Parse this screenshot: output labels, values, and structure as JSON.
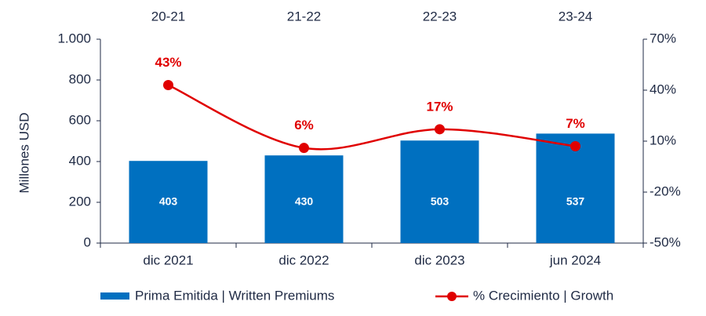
{
  "chart_data": {
    "type": "bar",
    "categories": [
      "dic 2021",
      "dic 2022",
      "dic 2023",
      "jun 2024"
    ],
    "top_labels": [
      "20-21",
      "21-22",
      "22-23",
      "23-24"
    ],
    "ylabel": "Millones  USD",
    "series": [
      {
        "name": "Prima Emitida | Written Premiums",
        "type": "bar",
        "color": "#0070c0",
        "values": [
          403,
          430,
          503,
          537
        ]
      },
      {
        "name": "% Crecimiento | Growth",
        "type": "line",
        "axis": "y2",
        "color": "#e00000",
        "values": [
          43,
          6,
          17,
          7
        ],
        "value_labels": [
          "43%",
          "6%",
          "17%",
          "7%"
        ]
      }
    ],
    "ylim": [
      0,
      1000
    ],
    "yticks": [
      0,
      200,
      400,
      600,
      800,
      {
        "value": 1000,
        "label": "1.000"
      }
    ],
    "y2lim": [
      -50,
      70
    ],
    "y2ticks": [
      {
        "value": -50,
        "label": "-50%"
      },
      {
        "value": -20,
        "label": "-20%"
      },
      {
        "value": 10,
        "label": "10%"
      },
      {
        "value": 40,
        "label": "40%"
      },
      {
        "value": 70,
        "label": "70%"
      }
    ],
    "grid": false
  }
}
